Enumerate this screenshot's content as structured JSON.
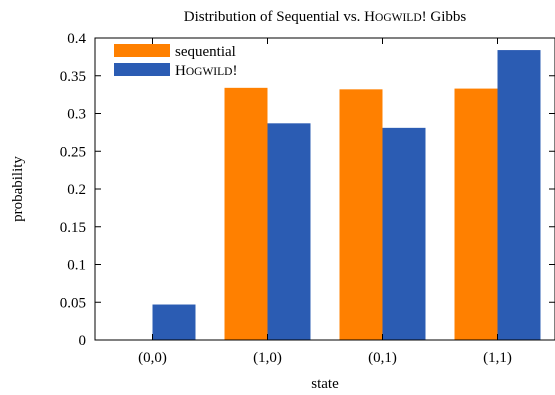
{
  "chart_data": {
    "type": "bar",
    "title": "Distribution of Sequential vs. HOGWILD! Gibbs",
    "title_parts": [
      {
        "text": "Distribution of Sequential vs. ",
        "small_caps": false
      },
      {
        "text": "H",
        "small_caps": false
      },
      {
        "text": "OGWILD",
        "small_caps": true
      },
      {
        "text": "! Gibbs",
        "small_caps": false
      }
    ],
    "xlabel": "state",
    "ylabel": "probability",
    "categories": [
      "(0,0)",
      "(1,0)",
      "(0,1)",
      "(1,1)"
    ],
    "ylim": [
      0,
      0.4
    ],
    "yticks": [
      0,
      0.05,
      0.1,
      0.15,
      0.2,
      0.25,
      0.3,
      0.35,
      0.4
    ],
    "ytick_labels": [
      "0",
      "0.05",
      "0.1",
      "0.15",
      "0.2",
      "0.25",
      "0.3",
      "0.35",
      "0.4"
    ],
    "legend_position": "top-left",
    "grid": false,
    "series": [
      {
        "name": "sequential",
        "name_parts": [
          {
            "text": "sequential",
            "small_caps": false
          }
        ],
        "color": "#ff8000",
        "values": [
          0.0,
          0.334,
          0.332,
          0.333
        ]
      },
      {
        "name": "HOGWILD!",
        "name_parts": [
          {
            "text": "H",
            "small_caps": false
          },
          {
            "text": "OGWILD",
            "small_caps": true
          },
          {
            "text": "!",
            "small_caps": false
          }
        ],
        "color": "#2b5cb3",
        "values": [
          0.047,
          0.287,
          0.281,
          0.384
        ]
      }
    ]
  }
}
